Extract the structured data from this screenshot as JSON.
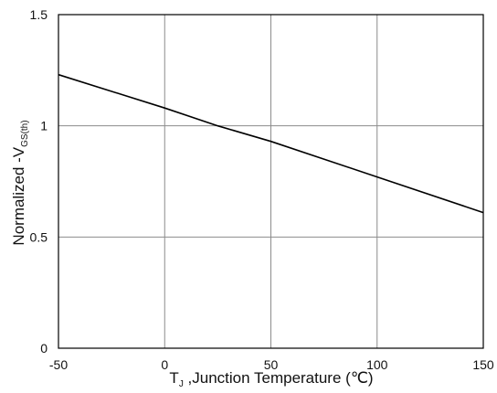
{
  "chart_data": {
    "type": "line",
    "title": "",
    "xlabel": {
      "main": "T",
      "sub": "J",
      "rest": " ,Junction Temperature (",
      "unit": "℃",
      "close": ")"
    },
    "ylabel": {
      "main": "Normalized -V",
      "sub": "GS(th)"
    },
    "xlim": [
      -50,
      150
    ],
    "ylim": [
      0,
      1.5
    ],
    "xticks": [
      -50,
      0,
      50,
      100,
      150
    ],
    "xtick_labels": [
      "-50",
      "0",
      "50",
      "100",
      "150"
    ],
    "yticks": [
      0,
      0.5,
      1,
      1.5
    ],
    "ytick_labels": [
      "0",
      "0.5",
      "1",
      "1.5"
    ],
    "grid": true,
    "series": [
      {
        "x": [
          -50,
          0,
          25,
          50,
          100,
          150
        ],
        "y": [
          1.23,
          1.08,
          1.0,
          0.93,
          0.77,
          0.61
        ]
      }
    ],
    "colors": {
      "line": "#000000",
      "grid": "#8c8c8c",
      "frame": "#000000"
    }
  }
}
